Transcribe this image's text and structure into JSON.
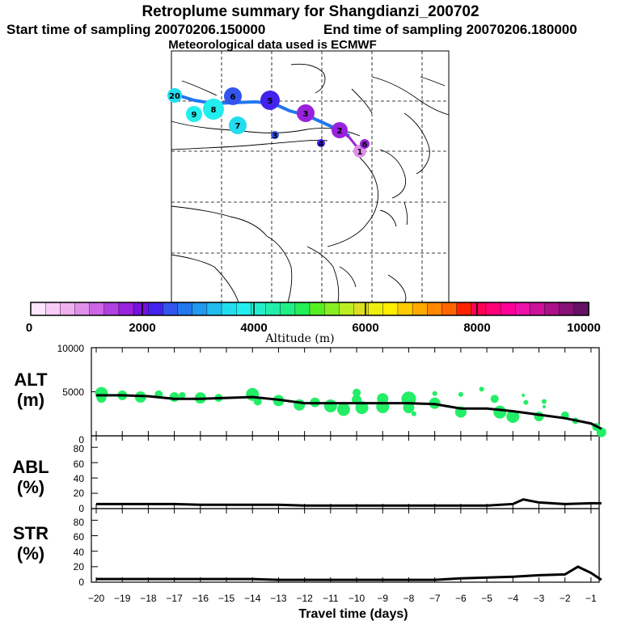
{
  "header": {
    "title": "Retroplume summary for Shangdianzi_200702",
    "start_text": "Start time of sampling 20070206.150000",
    "end_text": "End time of sampling 20070206.180000",
    "met_text": "Meteorological data used is ECMWF"
  },
  "colorbar": {
    "label": "Altitude (m)",
    "ticks": [
      "0",
      "2000",
      "4000",
      "6000",
      "8000",
      "10000"
    ],
    "colors": [
      "#ffe6ff",
      "#f7ccf7",
      "#eeb0ee",
      "#e090e8",
      "#cc66e6",
      "#b040e0",
      "#9922dd",
      "#7711dd",
      "#4422ee",
      "#3355ee",
      "#2277ee",
      "#2299ee",
      "#22bbee",
      "#22ddee",
      "#22eeee",
      "#22eecc",
      "#22eeaa",
      "#22ee88",
      "#22ee55",
      "#55ee22",
      "#88ee22",
      "#bbee22",
      "#dddd22",
      "#eeee11",
      "#ffee00",
      "#ffcc00",
      "#ffaa00",
      "#ff8800",
      "#ff6600",
      "#ff2200",
      "#ff0055",
      "#ff0077",
      "#ff0099",
      "#ee11aa",
      "#cc1199",
      "#aa1188",
      "#881177",
      "#661166"
    ]
  },
  "map": {
    "nodes": [
      {
        "label": "20",
        "alt": 3600
      },
      {
        "label": "9",
        "alt": 3800
      },
      {
        "label": "8",
        "alt": 3900
      },
      {
        "label": "6",
        "alt": 2600
      },
      {
        "label": "5",
        "alt": 2300
      },
      {
        "label": "3",
        "alt": 1700
      },
      {
        "label": "2",
        "alt": 1800
      },
      {
        "label": "1",
        "alt": 800
      },
      {
        "label": "7",
        "alt": 3600
      },
      {
        "label": "3",
        "alt": 2400
      },
      {
        "label": "4",
        "alt": 2200
      },
      {
        "label": "6",
        "alt": 1600
      }
    ]
  },
  "chart_data": [
    {
      "type": "line",
      "panel": "ALT",
      "title": "ALT",
      "ylabel": "(m)",
      "ylim": [
        0,
        10000
      ],
      "yticks": [
        "0",
        "5000",
        "10000"
      ],
      "xlim": [
        -20,
        -0.5
      ],
      "x": [
        -20,
        -19,
        -18,
        -17,
        -16,
        -15,
        -14,
        -13,
        -12,
        -11,
        -10,
        -9,
        -8,
        -7,
        -6,
        -5,
        -4,
        -3,
        -2,
        -1,
        -0.6
      ],
      "mean_line": [
        4600,
        4600,
        4500,
        4200,
        4200,
        4300,
        4400,
        4100,
        3700,
        3700,
        3700,
        3700,
        3700,
        3600,
        3100,
        3100,
        2800,
        2400,
        2000,
        1400,
        800
      ],
      "scatter": [
        {
          "x": -19.8,
          "y": 4800,
          "size": 8
        },
        {
          "x": -19.8,
          "y": 4300,
          "size": 6
        },
        {
          "x": -19.0,
          "y": 4600,
          "size": 6
        },
        {
          "x": -18.3,
          "y": 4400,
          "size": 7
        },
        {
          "x": -17.6,
          "y": 4700,
          "size": 5
        },
        {
          "x": -17.0,
          "y": 4400,
          "size": 6
        },
        {
          "x": -16.7,
          "y": 4600,
          "size": 4
        },
        {
          "x": -16.0,
          "y": 4300,
          "size": 7
        },
        {
          "x": -15.3,
          "y": 4300,
          "size": 5
        },
        {
          "x": -14.0,
          "y": 4700,
          "size": 8
        },
        {
          "x": -13.8,
          "y": 3900,
          "size": 5
        },
        {
          "x": -13.0,
          "y": 4000,
          "size": 7
        },
        {
          "x": -12.2,
          "y": 3500,
          "size": 7
        },
        {
          "x": -11.6,
          "y": 3800,
          "size": 6
        },
        {
          "x": -11.0,
          "y": 3400,
          "size": 8
        },
        {
          "x": -10.5,
          "y": 3000,
          "size": 8
        },
        {
          "x": -10.0,
          "y": 4900,
          "size": 5
        },
        {
          "x": -10.0,
          "y": 4100,
          "size": 6
        },
        {
          "x": -9.8,
          "y": 3200,
          "size": 8
        },
        {
          "x": -9.0,
          "y": 4200,
          "size": 7
        },
        {
          "x": -9.0,
          "y": 3300,
          "size": 8
        },
        {
          "x": -8.0,
          "y": 4200,
          "size": 9
        },
        {
          "x": -8.0,
          "y": 3200,
          "size": 7
        },
        {
          "x": -7.8,
          "y": 2500,
          "size": 3
        },
        {
          "x": -7.0,
          "y": 3700,
          "size": 7
        },
        {
          "x": -7.0,
          "y": 4800,
          "size": 3
        },
        {
          "x": -6.0,
          "y": 4700,
          "size": 3
        },
        {
          "x": -6.0,
          "y": 2700,
          "size": 7
        },
        {
          "x": -5.2,
          "y": 5300,
          "size": 3
        },
        {
          "x": -4.7,
          "y": 4200,
          "size": 5
        },
        {
          "x": -4.5,
          "y": 2700,
          "size": 8
        },
        {
          "x": -4.0,
          "y": 2200,
          "size": 8
        },
        {
          "x": -3.6,
          "y": 4600,
          "size": 2
        },
        {
          "x": -3.5,
          "y": 3800,
          "size": 3
        },
        {
          "x": -3.0,
          "y": 2200,
          "size": 6
        },
        {
          "x": -2.8,
          "y": 3900,
          "size": 3
        },
        {
          "x": -2.8,
          "y": 3300,
          "size": 2
        },
        {
          "x": -2.0,
          "y": 2300,
          "size": 5
        },
        {
          "x": -1.6,
          "y": 1700,
          "size": 4
        },
        {
          "x": -0.8,
          "y": 1000,
          "size": 5
        },
        {
          "x": -0.6,
          "y": 400,
          "size": 6
        }
      ]
    },
    {
      "type": "line",
      "panel": "ABL",
      "title": "ABL",
      "ylabel": "(%)",
      "ylim": [
        0,
        95
      ],
      "yticks": [
        "0",
        "20",
        "40",
        "60",
        "80"
      ],
      "xlim": [
        -20,
        -0.5
      ],
      "x": [
        -20,
        -19,
        -18,
        -17,
        -16,
        -15,
        -14,
        -13,
        -12,
        -11,
        -10,
        -9,
        -8,
        -7,
        -6,
        -5,
        -4,
        -3.6,
        -3,
        -2,
        -1,
        -0.6
      ],
      "values": [
        6,
        6,
        6,
        6,
        5,
        5,
        5,
        5,
        4,
        4,
        4,
        4,
        4,
        4,
        4,
        4,
        6,
        12,
        8,
        6,
        7,
        7
      ]
    },
    {
      "type": "line",
      "panel": "STR",
      "title": "STR",
      "ylabel": "(%)",
      "ylim": [
        0,
        95
      ],
      "yticks": [
        "0",
        "20",
        "40",
        "60",
        "80"
      ],
      "xlim": [
        -20,
        -0.5
      ],
      "x": [
        -20,
        -19,
        -18,
        -17,
        -16,
        -15,
        -14,
        -13,
        -12,
        -11,
        -10,
        -9,
        -8,
        -7,
        -6,
        -5,
        -4,
        -3,
        -2,
        -1.5,
        -1,
        -0.6
      ],
      "values": [
        4,
        4,
        4,
        4,
        4,
        4,
        4,
        3,
        3,
        3,
        3,
        3,
        3,
        3,
        5,
        6,
        7,
        9,
        10,
        20,
        12,
        3
      ]
    }
  ],
  "xaxis": {
    "label": "Travel time (days)",
    "ticks": [
      "−20",
      "−19",
      "−18",
      "−17",
      "−16",
      "−15",
      "−14",
      "−13",
      "−12",
      "−11",
      "−10",
      "−9",
      "−8",
      "−7",
      "−6",
      "−5",
      "−4",
      "−3",
      "−2",
      "−1"
    ]
  }
}
